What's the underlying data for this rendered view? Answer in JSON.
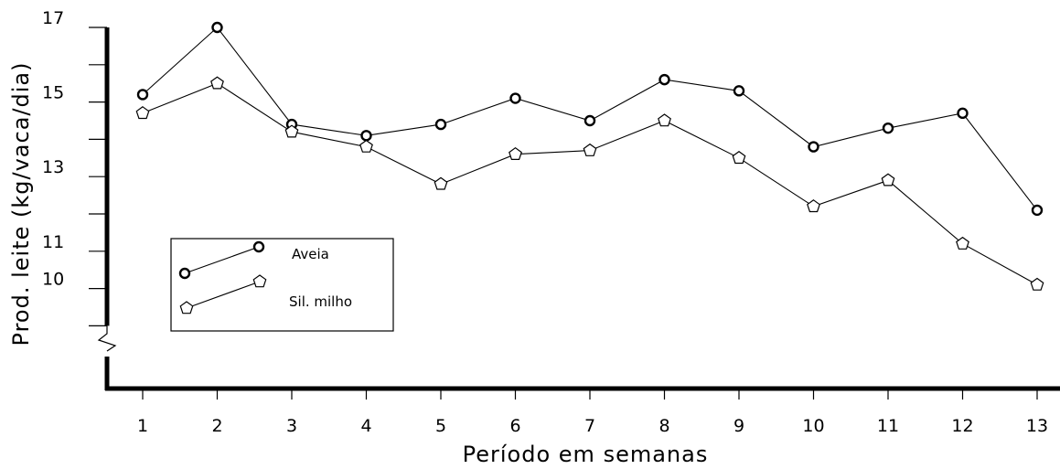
{
  "chart_data": {
    "type": "line",
    "xlabel": "Período em semanas",
    "ylabel": "Prod. leite (kg/vaca/dia)",
    "x": [
      1,
      2,
      3,
      4,
      5,
      6,
      7,
      8,
      9,
      10,
      11,
      12,
      13
    ],
    "x_ticks": [
      "1",
      "2",
      "3",
      "4",
      "5",
      "6",
      "7",
      "8",
      "9",
      "10",
      "11",
      "12",
      "13"
    ],
    "y_ticks": [
      {
        "value": 17,
        "label": "17"
      },
      {
        "value": 16,
        "label": ""
      },
      {
        "value": 15,
        "label": "15"
      },
      {
        "value": 14,
        "label": ""
      },
      {
        "value": 13,
        "label": "13"
      },
      {
        "value": 12,
        "label": ""
      },
      {
        "value": 11,
        "label": "11"
      },
      {
        "value": 10,
        "label": "10"
      },
      {
        "value": 9,
        "label": ""
      }
    ],
    "ylim": [
      9,
      17
    ],
    "y_axis_break": true,
    "grid": false,
    "legend": "left",
    "series": [
      {
        "name": "Aveia",
        "marker": "circle",
        "values": [
          15.2,
          17.0,
          14.4,
          14.1,
          14.4,
          15.1,
          14.5,
          15.6,
          15.3,
          13.8,
          14.3,
          14.7,
          12.1
        ]
      },
      {
        "name": "Sil. milho",
        "marker": "pentagon",
        "values": [
          14.7,
          15.5,
          14.2,
          13.8,
          12.8,
          13.6,
          13.7,
          14.5,
          13.5,
          12.2,
          12.9,
          11.2,
          10.1
        ]
      }
    ]
  }
}
